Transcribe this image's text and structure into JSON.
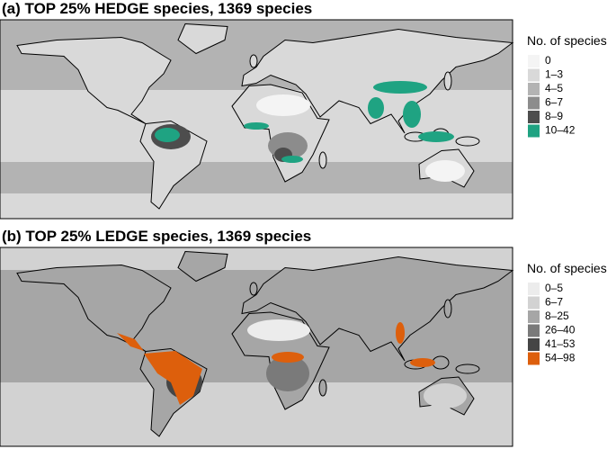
{
  "panels": [
    {
      "title": "(a) TOP 25% HEDGE species, 1369 species",
      "legend_title": "No. of species",
      "classes": [
        {
          "label": "0",
          "color": "#f4f4f4"
        },
        {
          "label": "1–3",
          "color": "#d9d9d9"
        },
        {
          "label": "4–5",
          "color": "#b3b3b3"
        },
        {
          "label": "6–7",
          "color": "#8c8c8c"
        },
        {
          "label": "8–9",
          "color": "#4d4d4d"
        },
        {
          "label": "10–42",
          "color": "#1fa382"
        }
      ]
    },
    {
      "title": "(b) TOP 25% LEDGE species, 1369 species",
      "legend_title": "No. of species",
      "classes": [
        {
          "label": "0–5",
          "color": "#ececec"
        },
        {
          "label": "6–7",
          "color": "#d2d2d2"
        },
        {
          "label": "8–25",
          "color": "#a6a6a6"
        },
        {
          "label": "26–40",
          "color": "#7a7a7a"
        },
        {
          "label": "41–53",
          "color": "#454545"
        },
        {
          "label": "54–98",
          "color": "#dd5f0c"
        }
      ]
    }
  ]
}
